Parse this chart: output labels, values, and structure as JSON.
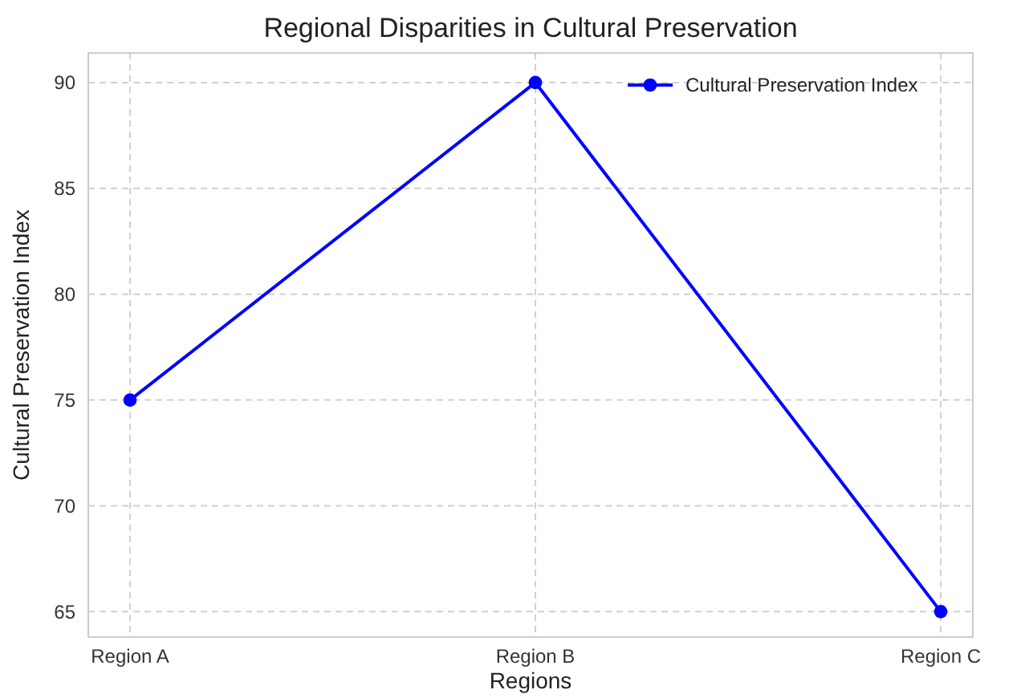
{
  "chart_data": {
    "type": "line",
    "title": "Regional Disparities in Cultural Preservation",
    "xlabel": "Regions",
    "ylabel": "Cultural Preservation Index",
    "categories": [
      "Region A",
      "Region B",
      "Region C"
    ],
    "series": [
      {
        "name": "Cultural Preservation Index",
        "color": "#0000ff",
        "values": [
          75,
          90,
          65
        ]
      }
    ],
    "ylim": [
      63.8,
      91.4
    ],
    "yticks": [
      65,
      70,
      75,
      80,
      85,
      90
    ],
    "grid": true,
    "legend": "top right",
    "marker": "circle",
    "line_style": "solid"
  }
}
